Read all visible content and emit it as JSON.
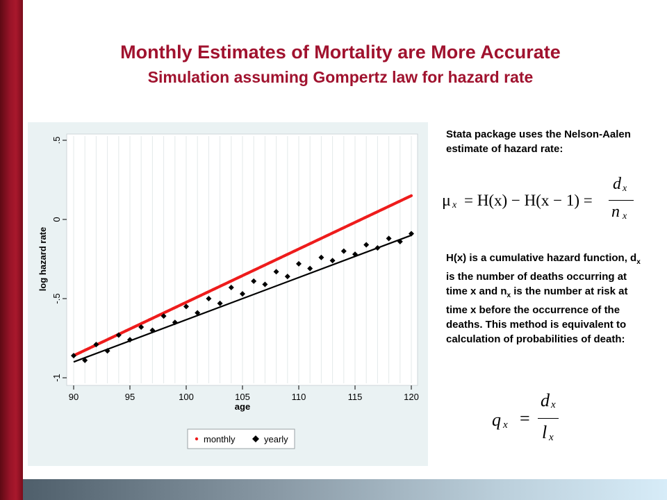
{
  "slide": {
    "title": "Monthly Estimates of Mortality are More Accurate",
    "subtitle": "Simulation assuming Gompertz law for hazard rate"
  },
  "text": {
    "intro": "Stata package uses the Nelson-Aalen estimate of hazard rate:",
    "desc_1": "H(x) is a cumulative hazard function, d",
    "desc_sub_1": "x",
    "desc_2": " is the number of deaths occurring at time x and n",
    "desc_sub_2": "x",
    "desc_3": " is the number at risk at time x  before the occurrence of the deaths. This method is equivalent to calculation of probabilities of death:"
  },
  "formulas": {
    "nelson_aalen": {
      "mu": "μ",
      "mu_sub": "x",
      "middle": "= H(x) − H(x − 1) =",
      "numerator": "d",
      "num_sub": "x",
      "denominator": "n",
      "den_sub": "x"
    },
    "probability": {
      "q": "q",
      "q_sub": "x",
      "equals": "=",
      "numerator": "d",
      "num_sub": "x",
      "denominator": "l",
      "den_sub": "x"
    }
  },
  "colors": {
    "title": "#a0122e",
    "monthly": "#ee1c1c",
    "yearly": "#000000",
    "panel_bg": "#eaf2f3",
    "grid": "#e6ebec"
  },
  "chart_data": {
    "type": "scatter",
    "xlabel": "age",
    "ylabel": "log hazard rate",
    "xlim": [
      90,
      120
    ],
    "ylim": [
      -1,
      0.5
    ],
    "x_ticks": [
      90,
      95,
      100,
      105,
      110,
      115,
      120
    ],
    "x_tick_labels": [
      "90",
      "95",
      "100",
      "105",
      "110",
      "115",
      "120"
    ],
    "y_ticks": [
      -1,
      -0.5,
      0,
      0.5
    ],
    "y_tick_labels": [
      "-1",
      "-.5",
      "0",
      ".5"
    ],
    "grid": true,
    "legend": {
      "position": "bottom",
      "entries": [
        "monthly",
        "yearly"
      ]
    },
    "series": [
      {
        "name": "monthly",
        "marker": "circle",
        "style": "dense-points",
        "start": [
          90,
          -0.86
        ],
        "end": [
          120,
          0.15
        ]
      },
      {
        "name": "yearly",
        "marker": "diamond",
        "x": [
          90,
          91,
          92,
          93,
          94,
          95,
          96,
          97,
          98,
          99,
          100,
          101,
          102,
          103,
          104,
          105,
          106,
          107,
          108,
          109,
          110,
          111,
          112,
          113,
          114,
          115,
          116,
          117,
          118,
          119,
          120
        ],
        "y": [
          -0.86,
          -0.89,
          -0.79,
          -0.83,
          -0.73,
          -0.76,
          -0.68,
          -0.7,
          -0.61,
          -0.65,
          -0.55,
          -0.59,
          -0.5,
          -0.53,
          -0.43,
          -0.47,
          -0.39,
          -0.41,
          -0.33,
          -0.36,
          -0.28,
          -0.31,
          -0.24,
          -0.26,
          -0.2,
          -0.22,
          -0.16,
          -0.18,
          -0.12,
          -0.14,
          -0.09
        ],
        "fit": {
          "start": [
            90,
            -0.9
          ],
          "end": [
            120,
            -0.1
          ]
        }
      }
    ]
  }
}
